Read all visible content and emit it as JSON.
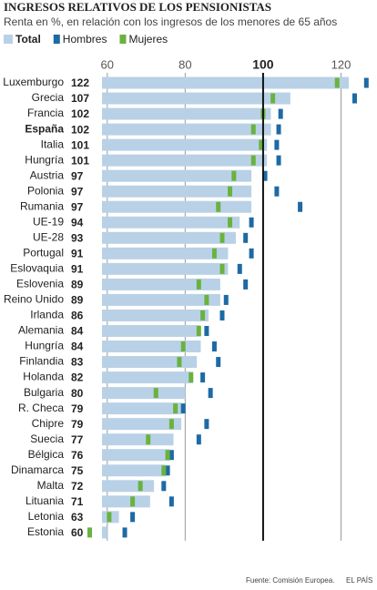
{
  "chart_data": {
    "type": "bar",
    "orientation": "horizontal",
    "title": "INGRESOS RELATIVOS DE LOS PENSIONISTAS",
    "subtitle": "Renta en %, en relación con los ingresos de los menores de 65 años",
    "categories": [
      "Luxemburgo",
      "Grecia",
      "Francia",
      "España",
      "Italia",
      "Hungría",
      "Austria",
      "Polonia",
      "Rumania",
      "UE-19",
      "UE-28",
      "Portugal",
      "Eslovaquia",
      "Eslovenia",
      "Reino Unido",
      "Irlanda",
      "Alemania",
      "Hungría",
      "Finlandia",
      "Holanda",
      "Bulgaria",
      "R. Checa",
      "Chipre",
      "Suecia",
      "Bélgica",
      "Dinamarca",
      "Malta",
      "Lituania",
      "Letonia",
      "Estonia"
    ],
    "highlight_index": 3,
    "series": [
      {
        "name": "Total",
        "color": "#b9d1e7",
        "values": [
          122,
          107,
          102,
          102,
          101,
          101,
          97,
          97,
          97,
          94,
          93,
          91,
          91,
          89,
          89,
          86,
          84,
          84,
          83,
          82,
          80,
          79,
          79,
          77,
          76,
          75,
          72,
          71,
          63,
          60
        ]
      },
      {
        "name": "Hombres",
        "color": "#1d6aa5",
        "values": [
          126.5,
          123.5,
          104.5,
          104,
          103.5,
          104,
          100.5,
          103.5,
          109.5,
          97,
          95.5,
          97,
          94,
          95.5,
          90.5,
          89.5,
          85.5,
          87.5,
          88.5,
          84.5,
          86.5,
          79.5,
          85.5,
          83.5,
          76.5,
          75.5,
          74.5,
          76.5,
          66.5,
          64.5
        ]
      },
      {
        "name": "Mujeres",
        "color": "#6ab23e",
        "values": [
          119,
          102.5,
          100,
          97.5,
          99.5,
          97.5,
          92.5,
          91.5,
          88.5,
          91.5,
          89.5,
          87.5,
          89.5,
          83.5,
          85.5,
          84.5,
          83.5,
          79.5,
          78.5,
          81.5,
          72.5,
          77.5,
          76.5,
          70.5,
          75.5,
          74.5,
          68.5,
          66.5,
          60.5,
          55.5
        ]
      }
    ],
    "xlim": [
      50,
      129
    ],
    "xticks": [
      60,
      80,
      100,
      120
    ],
    "reference": 100,
    "grid": true,
    "source": "Fuente: Comisión Europea.",
    "credit": "EL PAÍS"
  }
}
